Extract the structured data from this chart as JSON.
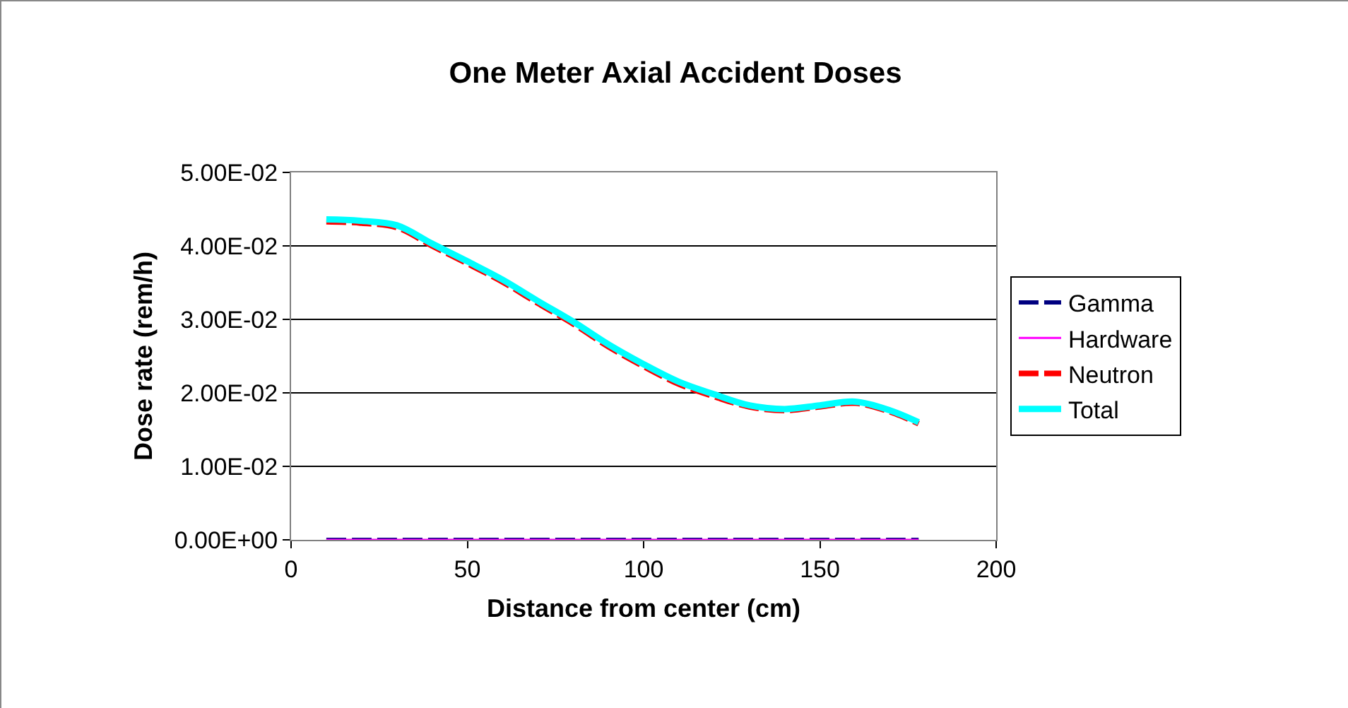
{
  "chart_data": {
    "type": "line",
    "title": "One Meter Axial Accident Doses",
    "xlabel": "Distance from center (cm)",
    "ylabel": "Dose rate (rem/h)",
    "x": [
      10,
      20,
      30,
      40,
      50,
      60,
      70,
      80,
      90,
      100,
      110,
      120,
      130,
      140,
      150,
      160,
      170,
      178
    ],
    "xlim": [
      0,
      200
    ],
    "xticks": [
      0,
      50,
      100,
      150,
      200
    ],
    "ylim": [
      0,
      0.05
    ],
    "yticks": [
      {
        "value": 0,
        "label": "0.00E+00"
      },
      {
        "value": 0.01,
        "label": "1.00E-02"
      },
      {
        "value": 0.02,
        "label": "2.00E-02"
      },
      {
        "value": 0.03,
        "label": "3.00E-02"
      },
      {
        "value": 0.04,
        "label": "4.00E-02"
      },
      {
        "value": 0.05,
        "label": "5.00E-02"
      }
    ],
    "grid": "y",
    "legend": "right",
    "marker": "none",
    "series": [
      {
        "name": "Gamma",
        "color": "#000080",
        "line_style": "dashed",
        "values": [
          0,
          0,
          0,
          0,
          0,
          0,
          0,
          0,
          0,
          0,
          0,
          0,
          0,
          0,
          0,
          0,
          0,
          0
        ]
      },
      {
        "name": "Hardware",
        "color": "#ff00ff",
        "line_style": "solid",
        "values": [
          0,
          0,
          0,
          0,
          0,
          0,
          0,
          0,
          0,
          0,
          0,
          0,
          0,
          0,
          0,
          0,
          0,
          0
        ]
      },
      {
        "name": "Neutron",
        "color": "#ff0000",
        "line_style": "dashed",
        "values": [
          0.0433,
          0.0431,
          0.0425,
          0.04,
          0.0376,
          0.0351,
          0.0322,
          0.0294,
          0.0263,
          0.0236,
          0.0212,
          0.0195,
          0.0181,
          0.0176,
          0.0181,
          0.0186,
          0.0174,
          0.0158
        ]
      },
      {
        "name": "Total",
        "color": "#00ffff",
        "line_style": "solid",
        "values": [
          0.0436,
          0.0434,
          0.0428,
          0.0403,
          0.0379,
          0.0354,
          0.0325,
          0.0297,
          0.0266,
          0.0239,
          0.0215,
          0.0198,
          0.0183,
          0.0178,
          0.0183,
          0.0188,
          0.0176,
          0.016
        ]
      }
    ]
  }
}
